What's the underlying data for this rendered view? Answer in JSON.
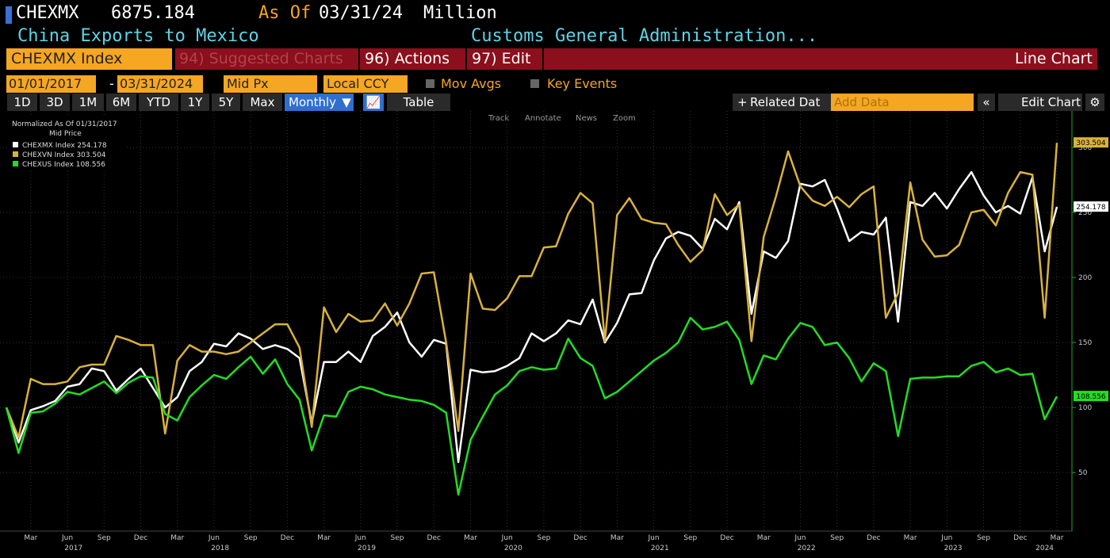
{
  "header": {
    "ticker": "CHEXMX",
    "price": "6875.184",
    "as_of_label": "As Of",
    "as_of": "03/31/24",
    "units": "Million",
    "description": "China Exports to Mexico",
    "source": "Customs General Administration..."
  },
  "toolbar": {
    "security": "CHEXMX Index",
    "suggested": "94) Suggested Charts",
    "actions": "96) Actions",
    "edit": "97) Edit",
    "chart_type": "Line Chart",
    "start_date": "01/01/2017",
    "end_date": "03/31/2024",
    "field": "Mid Px",
    "currency": "Local CCY",
    "mov_avgs": "Mov Avgs",
    "key_events": "Key Events",
    "periods": [
      "1D",
      "3D",
      "1M",
      "6M",
      "YTD",
      "1Y",
      "5Y",
      "Max"
    ],
    "frequency": "Monthly",
    "table": "Table",
    "related": "Related Dat",
    "add_data": "Add Data",
    "edit_chart": "Edit Chart",
    "tools": [
      "Track",
      "Annotate",
      "News",
      "Zoom"
    ]
  },
  "chart_data": {
    "type": "line",
    "legend_title": "Normalized As Of 01/31/2017",
    "legend_subtitle": "Mid Price",
    "x": [
      "2017-01",
      "2017-02",
      "2017-03",
      "2017-04",
      "2017-05",
      "2017-06",
      "2017-07",
      "2017-08",
      "2017-09",
      "2017-10",
      "2017-11",
      "2017-12",
      "2018-01",
      "2018-02",
      "2018-03",
      "2018-04",
      "2018-05",
      "2018-06",
      "2018-07",
      "2018-08",
      "2018-09",
      "2018-10",
      "2018-11",
      "2018-12",
      "2019-01",
      "2019-02",
      "2019-03",
      "2019-04",
      "2019-05",
      "2019-06",
      "2019-07",
      "2019-08",
      "2019-09",
      "2019-10",
      "2019-11",
      "2019-12",
      "2020-01",
      "2020-02",
      "2020-03",
      "2020-04",
      "2020-05",
      "2020-06",
      "2020-07",
      "2020-08",
      "2020-09",
      "2020-10",
      "2020-11",
      "2020-12",
      "2021-01",
      "2021-02",
      "2021-03",
      "2021-04",
      "2021-05",
      "2021-06",
      "2021-07",
      "2021-08",
      "2021-09",
      "2021-10",
      "2021-11",
      "2021-12",
      "2022-01",
      "2022-02",
      "2022-03",
      "2022-04",
      "2022-05",
      "2022-06",
      "2022-07",
      "2022-08",
      "2022-09",
      "2022-10",
      "2022-11",
      "2022-12",
      "2023-01",
      "2023-02",
      "2023-03",
      "2023-04",
      "2023-05",
      "2023-06",
      "2023-07",
      "2023-08",
      "2023-09",
      "2023-10",
      "2023-11",
      "2023-12",
      "2024-01",
      "2024-02",
      "2024-03"
    ],
    "series": [
      {
        "name": "CHEXMX Index",
        "color": "#ffffff",
        "values": [
          100,
          73,
          98,
          101,
          105,
          116,
          118,
          130,
          128,
          113,
          122,
          130,
          115,
          100,
          108,
          128,
          135,
          149,
          147,
          157,
          153,
          145,
          148,
          145,
          138,
          88,
          135,
          135,
          143,
          135,
          155,
          162,
          173,
          150,
          139,
          152,
          149,
          58,
          129,
          127,
          128,
          132,
          138,
          157,
          151,
          157,
          167,
          164,
          183,
          150,
          165,
          187,
          188,
          213,
          230,
          235,
          232,
          222,
          245,
          237,
          258,
          172,
          220,
          215,
          228,
          272,
          270,
          275,
          253,
          228,
          235,
          233,
          246,
          166,
          258,
          255,
          265,
          253,
          268,
          281,
          263,
          250,
          255,
          249,
          277,
          220,
          254.178
        ]
      },
      {
        "name": "CHEXVN Index",
        "color": "#d9b23c",
        "values": [
          100,
          77,
          122,
          118,
          118,
          120,
          131,
          133,
          133,
          155,
          152,
          148,
          148,
          80,
          136,
          148,
          143,
          143,
          141,
          143,
          150,
          157,
          164,
          164,
          146,
          85,
          177,
          158,
          172,
          166,
          167,
          180,
          163,
          180,
          203,
          204,
          150,
          82,
          203,
          176,
          175,
          184,
          201,
          201,
          223,
          224,
          249,
          265,
          257,
          151,
          248,
          261,
          245,
          242,
          241,
          225,
          212,
          221,
          264,
          248,
          256,
          151,
          231,
          262,
          297,
          270,
          259,
          255,
          262,
          254,
          264,
          270,
          169,
          188,
          273,
          229,
          216,
          217,
          225,
          250,
          252,
          240,
          265,
          281,
          279,
          169,
          303.504
        ]
      },
      {
        "name": "CHEXUS Index",
        "color": "#22dd22",
        "values": [
          100,
          65,
          96,
          97,
          103,
          112,
          110,
          115,
          120,
          111,
          119,
          124,
          123,
          95,
          90,
          108,
          117,
          125,
          122,
          131,
          139,
          126,
          137,
          118,
          106,
          67,
          94,
          93,
          112,
          116,
          114,
          110,
          108,
          106,
          105,
          102,
          96,
          33,
          75,
          93,
          110,
          117,
          128,
          131,
          129,
          130,
          153,
          138,
          132,
          107,
          112,
          120,
          128,
          136,
          142,
          150,
          169,
          160,
          162,
          166,
          152,
          118,
          140,
          137,
          153,
          165,
          162,
          148,
          150,
          138,
          120,
          134,
          128,
          78,
          122,
          123,
          123,
          124,
          124,
          132,
          135,
          127,
          130,
          125,
          126,
          91,
          108.556
        ]
      }
    ],
    "ylim": [
      5,
      328
    ],
    "yticks": [
      50,
      100,
      150,
      200,
      250,
      300
    ],
    "xticks": [
      {
        "value": "2017-03",
        "label": "Mar"
      },
      {
        "value": "2017-06",
        "label": "Jun"
      },
      {
        "value": "2017-09",
        "label": "Sep"
      },
      {
        "value": "2017-12",
        "label": "Dec"
      },
      {
        "value": "2018-03",
        "label": "Mar"
      },
      {
        "value": "2018-06",
        "label": "Jun"
      },
      {
        "value": "2018-09",
        "label": "Sep"
      },
      {
        "value": "2018-12",
        "label": "Dec"
      },
      {
        "value": "2019-03",
        "label": "Mar"
      },
      {
        "value": "2019-06",
        "label": "Jun"
      },
      {
        "value": "2019-09",
        "label": "Sep"
      },
      {
        "value": "2019-12",
        "label": "Dec"
      },
      {
        "value": "2020-03",
        "label": "Mar"
      },
      {
        "value": "2020-06",
        "label": "Jun"
      },
      {
        "value": "2020-09",
        "label": "Sep"
      },
      {
        "value": "2020-12",
        "label": "Dec"
      },
      {
        "value": "2021-03",
        "label": "Mar"
      },
      {
        "value": "2021-06",
        "label": "Jun"
      },
      {
        "value": "2021-09",
        "label": "Sep"
      },
      {
        "value": "2021-12",
        "label": "Dec"
      },
      {
        "value": "2022-03",
        "label": "Mar"
      },
      {
        "value": "2022-06",
        "label": "Jun"
      },
      {
        "value": "2022-09",
        "label": "Sep"
      },
      {
        "value": "2022-12",
        "label": "Dec"
      },
      {
        "value": "2023-03",
        "label": "Mar"
      },
      {
        "value": "2023-06",
        "label": "Jun"
      },
      {
        "value": "2023-09",
        "label": "Sep"
      },
      {
        "value": "2023-12",
        "label": "Dec"
      },
      {
        "value": "2024-03",
        "label": "Mar"
      }
    ],
    "year_labels": [
      "2017",
      "2018",
      "2019",
      "2020",
      "2021",
      "2022",
      "2023",
      "2024"
    ],
    "grid": true
  }
}
